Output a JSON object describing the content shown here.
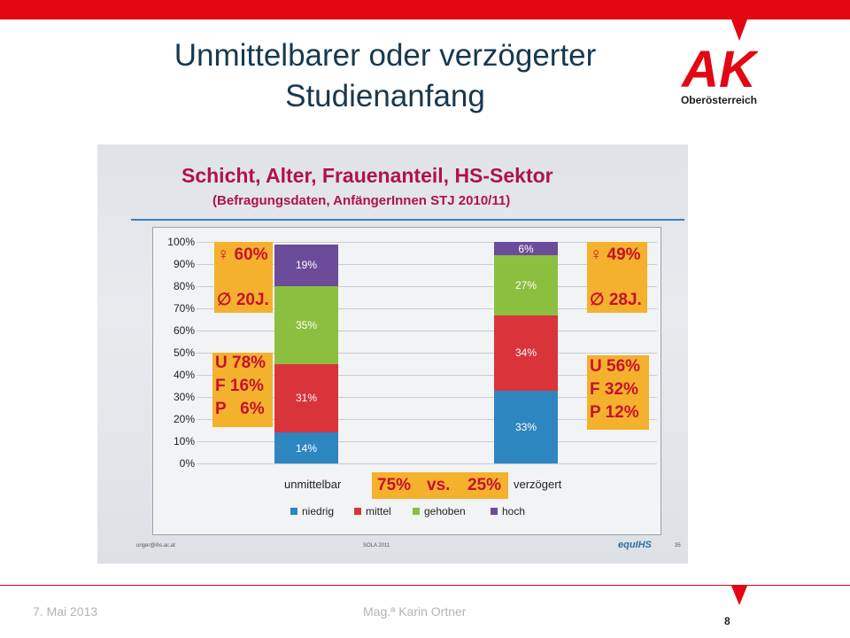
{
  "header": {
    "title_line1": "Unmittelbarer oder verzögerter",
    "title_line2": "Studienanfang",
    "logo_letters": "AK",
    "logo_text": "Oberösterreich",
    "brand_color": "#e30613"
  },
  "slide_photo": {
    "title": "Schicht, Alter, Frauenanteil, HS-Sektor",
    "subtitle": "(Befragungsdaten, AnfängerInnen STJ 2010/11)",
    "left_box_top": {
      "female": "♀ 60%",
      "age": "∅ 20J."
    },
    "left_box_bottom": {
      "line1": "U 78%",
      "line2": "F 16%",
      "line3": "P   6%"
    },
    "right_box_top": {
      "female": "♀ 49%",
      "age": "∅ 28J."
    },
    "right_box_bottom": {
      "line1": "U 56%",
      "line2": "F 32%",
      "line3": "P 12%"
    },
    "center_box": {
      "left": "75%",
      "mid": "vs.",
      "right": "25%"
    },
    "footer_left": "unger@ihs.ac.at",
    "footer_center": "SOLA 2011",
    "footer_right_logo": "equIHS",
    "footer_page": "35"
  },
  "chart_data": {
    "type": "bar",
    "stacked": true,
    "categories": [
      "unmittelbar",
      "verzögert"
    ],
    "series": [
      {
        "name": "niedrig",
        "color": "#2e86c1",
        "values": [
          14,
          33
        ],
        "labels": [
          "14%",
          "33%"
        ]
      },
      {
        "name": "mittel",
        "color": "#d9343a",
        "values": [
          31,
          34
        ],
        "labels": [
          "31%",
          "34%"
        ]
      },
      {
        "name": "gehoben",
        "color": "#8cbf3f",
        "values": [
          35,
          27
        ],
        "labels": [
          "35%",
          "27%"
        ]
      },
      {
        "name": "hoch",
        "color": "#6b4c9a",
        "values": [
          19,
          6
        ],
        "labels": [
          "19%",
          "6%"
        ]
      }
    ],
    "yticks": [
      "0%",
      "10%",
      "20%",
      "30%",
      "40%",
      "50%",
      "60%",
      "70%",
      "80%",
      "90%",
      "100%"
    ],
    "ylim": [
      0,
      100
    ],
    "legend": "bottom"
  },
  "footer": {
    "date": "7. Mai 2013",
    "author": "Mag.ª Karin Ortner",
    "page": "8"
  }
}
